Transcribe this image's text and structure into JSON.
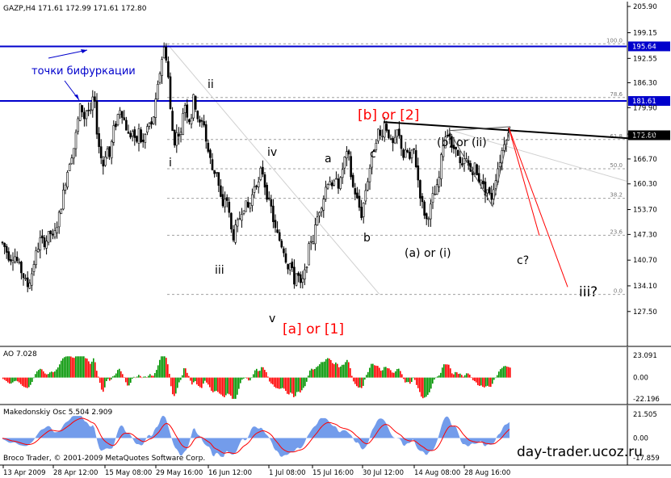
{
  "header": {
    "main": "GAZP,H4  171.61 172.99 171.61 172.80",
    "ao": "AO 7.028",
    "mak": "Makedonskiy Osc 5.504 2.909"
  },
  "footer": {
    "copyright": "Broco Trader, © 2001-2009 MetaQuotes Software Corp.",
    "site": "day-trader.ucoz.ru"
  },
  "annotations": {
    "bifurcation": "точки бифуркации",
    "i": "i",
    "ii": "ii",
    "iii": "iii",
    "iv": "iv",
    "v": "v",
    "a": "a",
    "b": "b",
    "c": "c",
    "wave_a1": "[a] or [1]",
    "wave_b2": "[b] or [2]",
    "a_i": "(a) or (i)",
    "b_ii": "(b) or (ii)",
    "c_q": "c?",
    "iii_q": "iii?"
  },
  "colors": {
    "bull": "#009400",
    "bear": "#ff0000",
    "level": "#0000cc",
    "mak_fill": "#5b8be8",
    "mak_signal": "#ff0000",
    "grid": "#a0a0a0",
    "price_box": "#000000"
  },
  "chart_data": {
    "type": "candlestick",
    "symbol": "GAZP",
    "timeframe": "H4",
    "ylim": [
      120.4,
      205.9
    ],
    "price_ticks": [
      "205.90",
      "199.15",
      "192.55",
      "186.30",
      "179.90",
      "173.10",
      "166.70",
      "160.30",
      "153.70",
      "147.30",
      "140.70",
      "134.10",
      "127.50"
    ],
    "x_ticks": [
      "13 Apr 2009",
      "28 Apr 12:00",
      "15 May 08:00",
      "29 May 16:00",
      "16 Jun 12:00",
      "1 Jul 08:00",
      "15 Jul 16:00",
      "30 Jul 12:00",
      "14 Aug 08:00",
      "28 Aug 16:00"
    ],
    "price_path": [
      [
        0,
        146
      ],
      [
        6,
        144
      ],
      [
        12,
        141
      ],
      [
        18,
        142
      ],
      [
        24,
        139
      ],
      [
        30,
        136
      ],
      [
        34,
        134
      ],
      [
        38,
        136
      ],
      [
        44,
        142
      ],
      [
        50,
        146
      ],
      [
        56,
        145
      ],
      [
        62,
        148
      ],
      [
        66,
        146
      ],
      [
        72,
        151
      ],
      [
        76,
        155
      ],
      [
        80,
        160
      ],
      [
        86,
        166
      ],
      [
        92,
        170
      ],
      [
        96,
        176
      ],
      [
        100,
        181
      ],
      [
        104,
        177
      ],
      [
        108,
        180
      ],
      [
        112,
        178
      ],
      [
        116,
        184
      ],
      [
        120,
        174
      ],
      [
        124,
        168
      ],
      [
        128,
        165
      ],
      [
        132,
        170
      ],
      [
        136,
        167
      ],
      [
        140,
        174
      ],
      [
        144,
        176
      ],
      [
        148,
        180
      ],
      [
        152,
        178
      ],
      [
        156,
        175
      ],
      [
        160,
        172
      ],
      [
        164,
        174
      ],
      [
        168,
        170
      ],
      [
        172,
        174
      ],
      [
        176,
        170
      ],
      [
        180,
        173
      ],
      [
        184,
        176
      ],
      [
        188,
        175
      ],
      [
        192,
        180
      ],
      [
        196,
        186
      ],
      [
        200,
        192
      ],
      [
        204,
        196
      ],
      [
        208,
        189
      ],
      [
        212,
        176
      ],
      [
        216,
        171
      ],
      [
        220,
        174
      ],
      [
        224,
        173
      ],
      [
        228,
        182
      ],
      [
        232,
        178
      ],
      [
        236,
        176
      ],
      [
        240,
        183
      ],
      [
        244,
        178
      ],
      [
        248,
        175
      ],
      [
        252,
        177
      ],
      [
        256,
        170
      ],
      [
        260,
        167
      ],
      [
        264,
        163
      ],
      [
        268,
        164
      ],
      [
        272,
        158
      ],
      [
        276,
        154
      ],
      [
        280,
        158
      ],
      [
        284,
        152
      ],
      [
        288,
        146
      ],
      [
        292,
        149
      ],
      [
        296,
        151
      ],
      [
        300,
        154
      ],
      [
        304,
        155
      ],
      [
        308,
        154
      ],
      [
        312,
        157
      ],
      [
        316,
        161
      ],
      [
        320,
        160
      ],
      [
        324,
        165
      ],
      [
        328,
        160
      ],
      [
        332,
        156
      ],
      [
        336,
        154
      ],
      [
        340,
        149
      ],
      [
        344,
        147
      ],
      [
        348,
        145
      ],
      [
        352,
        143
      ],
      [
        356,
        139
      ],
      [
        360,
        140
      ],
      [
        364,
        135
      ],
      [
        368,
        138
      ],
      [
        372,
        134
      ],
      [
        376,
        136
      ],
      [
        380,
        140
      ],
      [
        384,
        146
      ],
      [
        388,
        146
      ],
      [
        392,
        151
      ],
      [
        396,
        154
      ],
      [
        400,
        156
      ],
      [
        404,
        160
      ],
      [
        408,
        162
      ],
      [
        412,
        158
      ],
      [
        416,
        163
      ],
      [
        420,
        159
      ],
      [
        424,
        164
      ],
      [
        428,
        168
      ],
      [
        432,
        167
      ],
      [
        436,
        160
      ],
      [
        440,
        158
      ],
      [
        444,
        155
      ],
      [
        448,
        152
      ],
      [
        452,
        158
      ],
      [
        456,
        162
      ],
      [
        460,
        167
      ],
      [
        464,
        170
      ],
      [
        468,
        174
      ],
      [
        472,
        172
      ],
      [
        476,
        176
      ],
      [
        480,
        174
      ],
      [
        484,
        171
      ],
      [
        488,
        170
      ],
      [
        492,
        174
      ],
      [
        496,
        171
      ],
      [
        500,
        167
      ],
      [
        504,
        169
      ],
      [
        508,
        166
      ],
      [
        512,
        170
      ],
      [
        516,
        164
      ],
      [
        520,
        158
      ],
      [
        524,
        154
      ],
      [
        528,
        151
      ],
      [
        532,
        153
      ],
      [
        536,
        157
      ],
      [
        540,
        158
      ],
      [
        544,
        162
      ],
      [
        548,
        170
      ],
      [
        552,
        173
      ],
      [
        556,
        174
      ],
      [
        560,
        168
      ],
      [
        564,
        171
      ],
      [
        568,
        166
      ],
      [
        572,
        164
      ],
      [
        576,
        167
      ],
      [
        580,
        165
      ],
      [
        584,
        163
      ],
      [
        588,
        165
      ],
      [
        592,
        161
      ],
      [
        596,
        162
      ],
      [
        600,
        158
      ],
      [
        604,
        159
      ],
      [
        608,
        156
      ],
      [
        612,
        160
      ],
      [
        616,
        164
      ],
      [
        620,
        167
      ],
      [
        624,
        171
      ],
      [
        628,
        173
      ],
      [
        632,
        172.8
      ]
    ],
    "levels": [
      {
        "price": 195.64,
        "label": "195.64",
        "kind": "resistance"
      },
      {
        "price": 181.61,
        "label": "181.61",
        "kind": "resistance"
      }
    ],
    "fib_levels": [
      {
        "ratio": "100.0",
        "price": 196.3
      },
      {
        "ratio": "78.6",
        "price": 182.5
      },
      {
        "ratio": "61.8",
        "price": 171.7
      },
      {
        "ratio": "50.0",
        "price": 164.2
      },
      {
        "ratio": "38.2",
        "price": 156.6
      },
      {
        "ratio": "23.6",
        "price": 147.1
      },
      {
        "ratio": "0.0",
        "price": 131.9
      }
    ],
    "current_price": "172.80",
    "trendline": [
      [
        475,
        176.2
      ],
      [
        780,
        172.0
      ]
    ],
    "projection_lines": [
      [
        [
          630,
          174.8
        ],
        [
          668,
          147.0
        ]
      ],
      [
        [
          630,
          174.8
        ],
        [
          703,
          133.8
        ]
      ]
    ],
    "ao": {
      "ylim": [
        -25.4,
        25.6
      ],
      "ticks": [
        "23.091",
        "0.00",
        "-22.196"
      ],
      "value": 7.028
    },
    "makedonskiy": {
      "ylim": [
        -21.5,
        24.5
      ],
      "ticks": [
        "21.505",
        "0.00",
        "-17.859"
      ],
      "value": 5.504,
      "signal": 2.909
    }
  }
}
